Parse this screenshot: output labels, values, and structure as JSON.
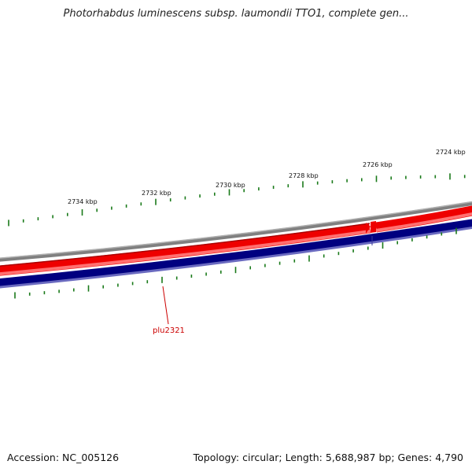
{
  "title": "Photorhabdus luminescens subsp. laumondii TTO1, complete gen...",
  "footer": {
    "accession": "Accession: NC_005126",
    "summary": "Topology: circular; Length: 5,688,987 bp; Genes: 4,790"
  },
  "ruler_labels": [
    "2734 kbp",
    "2732 kbp",
    "2730 kbp",
    "2728 kbp",
    "2726 kbp",
    "2724 kbp"
  ],
  "feature_label": "plu2321",
  "colors": {
    "backbone": "#808080",
    "forward_cds": "#ee0000",
    "reverse_cds": "#000080",
    "ticks": "#1a7a1a",
    "label_line": "#cc0000"
  }
}
